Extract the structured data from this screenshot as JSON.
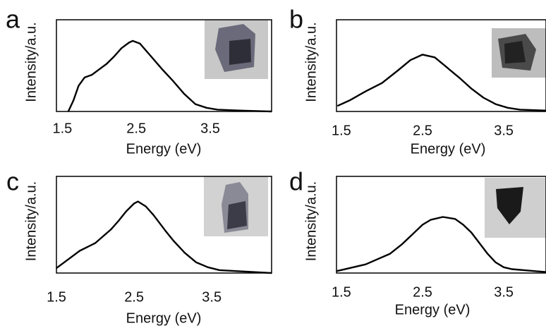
{
  "chart_data": [
    {
      "type": "line",
      "label": "a",
      "x_label": "Energy (eV)",
      "y_label": "Intensity/a.u.",
      "color": "#000000",
      "xlim": [
        1.42,
        4.33
      ],
      "ylim": [
        0,
        1
      ],
      "xticks": [
        1.5,
        2.5,
        3.5
      ],
      "grid": false,
      "x": [
        1.58,
        1.65,
        1.72,
        1.8,
        1.9,
        2.0,
        2.1,
        2.2,
        2.3,
        2.4,
        2.45,
        2.55,
        2.7,
        2.85,
        3.0,
        3.15,
        3.3,
        3.45,
        3.6,
        3.9,
        4.33
      ],
      "values": [
        0.0,
        0.12,
        0.28,
        0.37,
        0.4,
        0.46,
        0.52,
        0.6,
        0.69,
        0.75,
        0.77,
        0.74,
        0.6,
        0.46,
        0.33,
        0.19,
        0.08,
        0.04,
        0.02,
        0.01,
        0.0
      ]
    },
    {
      "type": "line",
      "label": "b",
      "x_label": "Energy (eV)",
      "y_label": "Intensity/a.u.",
      "color": "#000000",
      "xlim": [
        1.44,
        4.02
      ],
      "ylim": [
        0,
        1
      ],
      "xticks": [
        1.5,
        2.5,
        3.5
      ],
      "grid": false,
      "x": [
        1.45,
        1.6,
        1.8,
        2.0,
        2.2,
        2.35,
        2.5,
        2.65,
        2.8,
        2.95,
        3.1,
        3.25,
        3.4,
        3.55,
        3.7,
        4.02
      ],
      "values": [
        0.06,
        0.12,
        0.22,
        0.31,
        0.45,
        0.56,
        0.62,
        0.59,
        0.48,
        0.37,
        0.25,
        0.15,
        0.08,
        0.04,
        0.02,
        0.01
      ]
    },
    {
      "type": "line",
      "label": "c",
      "x_label": "Energy (eV)",
      "y_label": "Intensity/a.u.",
      "color": "#000000",
      "xlim": [
        1.5,
        4.27
      ],
      "ylim": [
        0,
        1
      ],
      "xticks": [
        1.5,
        2.5,
        3.5
      ],
      "grid": false,
      "x": [
        1.5,
        1.65,
        1.8,
        2.0,
        2.2,
        2.3,
        2.4,
        2.5,
        2.55,
        2.65,
        2.75,
        2.9,
        3.0,
        3.15,
        3.3,
        3.45,
        3.6,
        4.27
      ],
      "values": [
        0.05,
        0.14,
        0.23,
        0.31,
        0.45,
        0.54,
        0.64,
        0.72,
        0.74,
        0.69,
        0.6,
        0.44,
        0.34,
        0.21,
        0.11,
        0.06,
        0.03,
        0.0
      ]
    },
    {
      "type": "line",
      "label": "d",
      "x_label": "Energy (eV)",
      "y_label": "Intensity/a.u.",
      "color": "#000000",
      "xlim": [
        1.44,
        4.02
      ],
      "ylim": [
        0,
        1
      ],
      "xticks": [
        1.5,
        2.5,
        3.5
      ],
      "grid": false,
      "x": [
        1.44,
        1.6,
        1.8,
        2.1,
        2.25,
        2.4,
        2.5,
        2.6,
        2.75,
        2.9,
        3.0,
        3.1,
        3.2,
        3.3,
        3.4,
        3.5,
        3.6,
        4.02
      ],
      "values": [
        0.02,
        0.05,
        0.09,
        0.2,
        0.3,
        0.42,
        0.5,
        0.55,
        0.58,
        0.56,
        0.5,
        0.42,
        0.31,
        0.2,
        0.11,
        0.06,
        0.04,
        0.01
      ]
    }
  ]
}
